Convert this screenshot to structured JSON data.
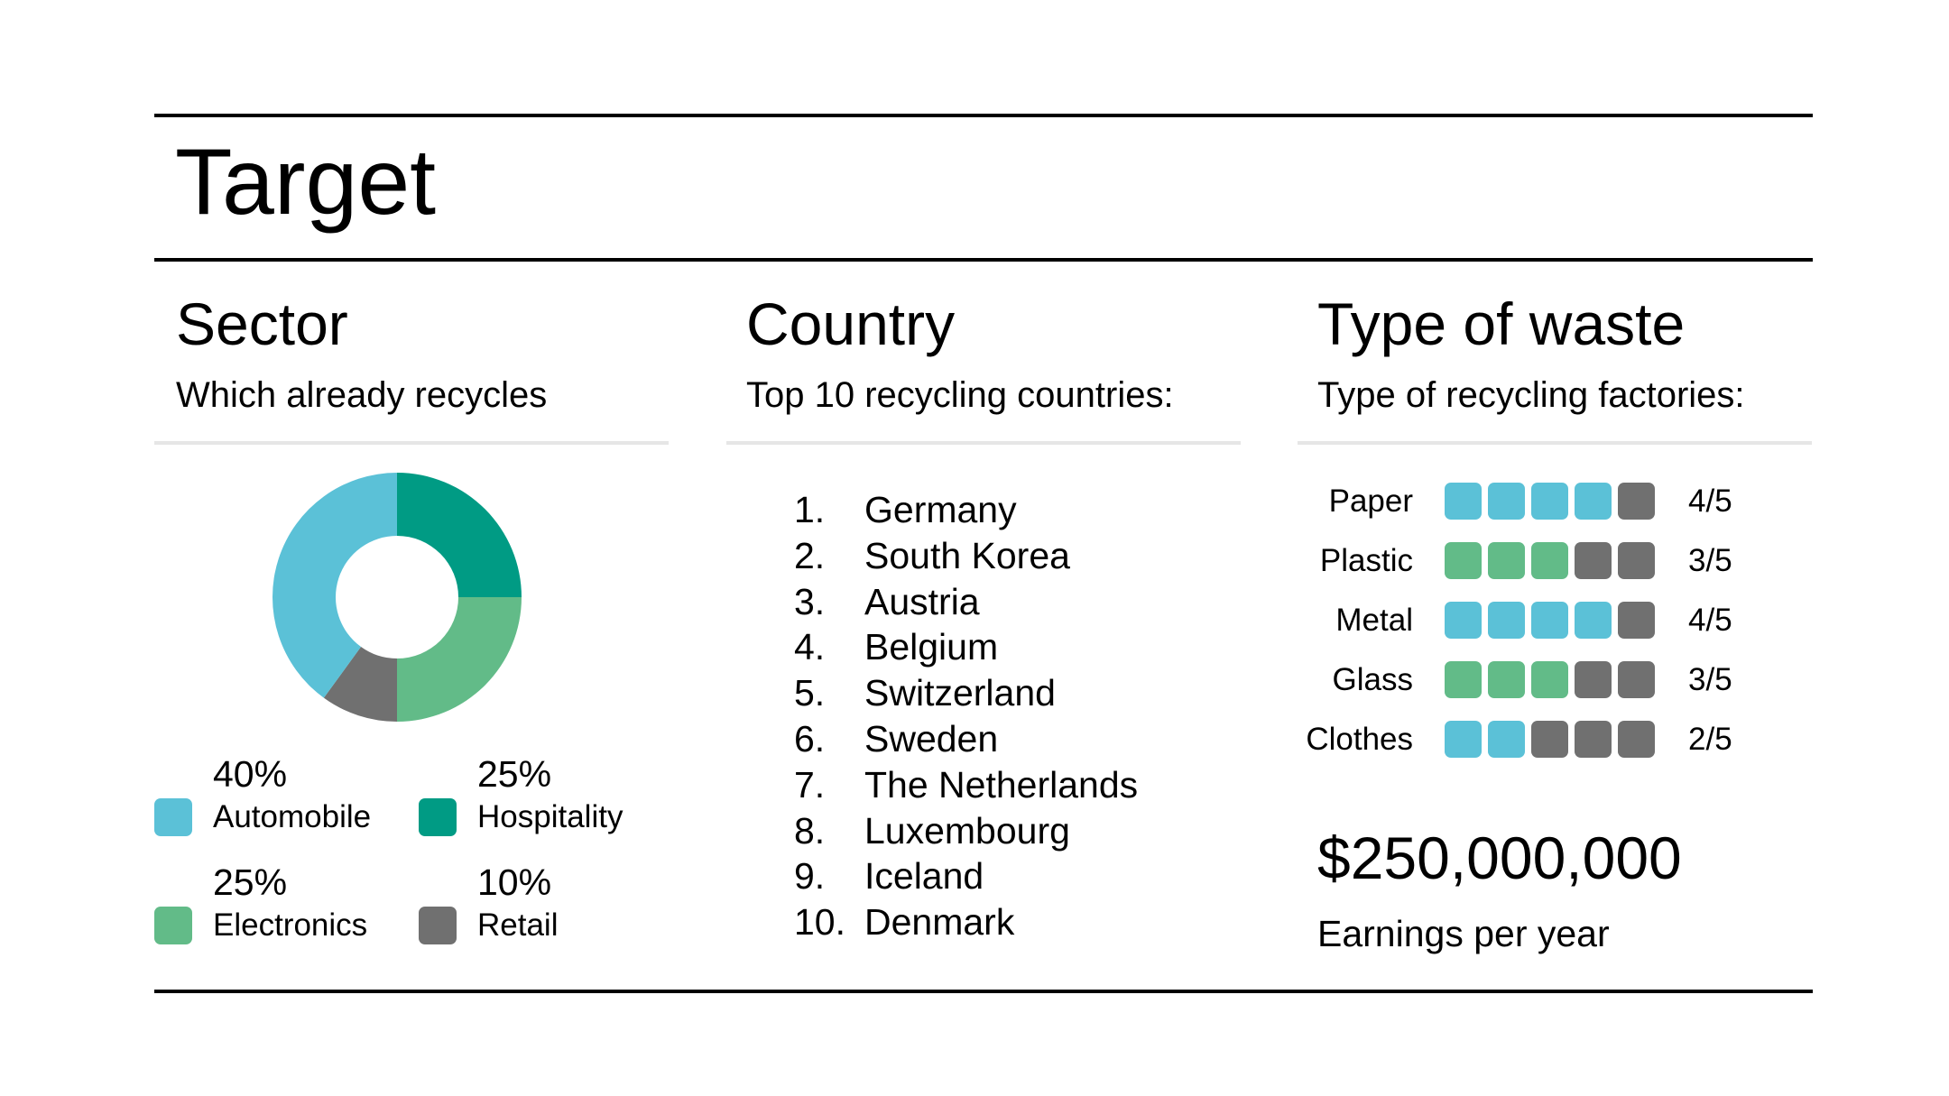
{
  "title": "Target",
  "sector": {
    "title": "Sector",
    "subtitle": "Which already recycles",
    "chart_data": {
      "type": "pie",
      "categories": [
        "Hospitality",
        "Electronics",
        "Retail",
        "Automobile"
      ],
      "values": [
        25,
        25,
        10,
        40
      ],
      "colors": [
        "#009b84",
        "#62bb88",
        "#707070",
        "#5bc1d7"
      ]
    },
    "legend": [
      {
        "pct": "40%",
        "label": "Automobile",
        "color": "#5bc1d7"
      },
      {
        "pct": "25%",
        "label": "Hospitality",
        "color": "#009b84"
      },
      {
        "pct": "25%",
        "label": "Electronics",
        "color": "#62bb88"
      },
      {
        "pct": "10%",
        "label": "Retail",
        "color": "#707070"
      }
    ]
  },
  "country": {
    "title": "Country",
    "subtitle": "Top 10 recycling countries:",
    "items": [
      {
        "num": "1.",
        "name": "Germany"
      },
      {
        "num": "2.",
        "name": "South Korea"
      },
      {
        "num": "3.",
        "name": "Austria"
      },
      {
        "num": "4.",
        "name": "Belgium"
      },
      {
        "num": "5.",
        "name": "Switzerland"
      },
      {
        "num": "6.",
        "name": "Sweden"
      },
      {
        "num": "7.",
        "name": "The Netherlands"
      },
      {
        "num": "8.",
        "name": "Luxembourg"
      },
      {
        "num": "9.",
        "name": "Iceland"
      },
      {
        "num": "10.",
        "name": "Denmark"
      }
    ]
  },
  "waste": {
    "title": "Type of waste",
    "subtitle": "Type of recycling factories:",
    "rows": [
      {
        "label": "Paper",
        "score": "4/5",
        "filled": 4,
        "color": "#5bc1d7"
      },
      {
        "label": "Plastic",
        "score": "3/5",
        "filled": 3,
        "color": "#62bb88"
      },
      {
        "label": "Metal",
        "score": "4/5",
        "filled": 4,
        "color": "#5bc1d7"
      },
      {
        "label": "Glass",
        "score": "3/5",
        "filled": 3,
        "color": "#62bb88"
      },
      {
        "label": "Clothes",
        "score": "2/5",
        "filled": 2,
        "color": "#5bc1d7"
      }
    ],
    "empty_color": "#707070",
    "earnings_value": "$250,000,000",
    "earnings_label": "Earnings per year"
  }
}
